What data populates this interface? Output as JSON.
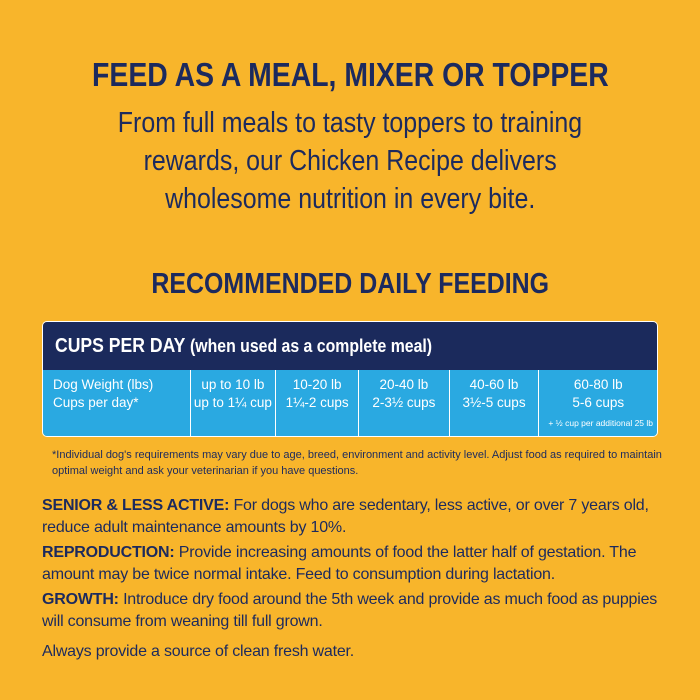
{
  "header": {
    "title": "FEED AS A MEAL, MIXER OR TOPPER",
    "subtitle_lines": [
      "From full meals to tasty toppers to training",
      "rewards, our Chicken Recipe delivers",
      "wholesome nutrition in every bite."
    ]
  },
  "feeding": {
    "heading": "RECOMMENDED DAILY FEEDING",
    "table": {
      "title": "CUPS PER DAY",
      "title_note": "(when used as a complete meal)",
      "row_labels": [
        "Dog Weight (lbs)",
        "Cups per day*"
      ],
      "columns": [
        {
          "weight": "up to 10 lb",
          "cups": "up to 1¼ cup"
        },
        {
          "weight": "10-20 lb",
          "cups": "1¼-2 cups"
        },
        {
          "weight": "20-40 lb",
          "cups": "2-3½ cups"
        },
        {
          "weight": "40-60 lb",
          "cups": "3½-5 cups"
        },
        {
          "weight": "60-80 lb",
          "cups": "5-6 cups",
          "note": "+ ½ cup per additional 25 lb"
        }
      ]
    },
    "footnote": "*Individual dog's requirements may vary due to age, breed, environment and activity level. Adjust food as required to maintain optimal weight and ask your veterinarian if you have questions."
  },
  "sections": [
    {
      "label": "SENIOR & LESS ACTIVE:",
      "text": "For dogs who are sedentary, less active, or over 7 years old, reduce adult maintenance amounts by 10%."
    },
    {
      "label": "REPRODUCTION:",
      "text": "Provide increasing amounts of food the latter half of gestation. The amount may be twice normal intake. Feed to consumption during lactation."
    },
    {
      "label": "GROWTH:",
      "text": "Introduce dry food around the 5th week and provide as much food as puppies will consume from weaning till full grown."
    }
  ],
  "closing": "Always provide a source of clean fresh water."
}
